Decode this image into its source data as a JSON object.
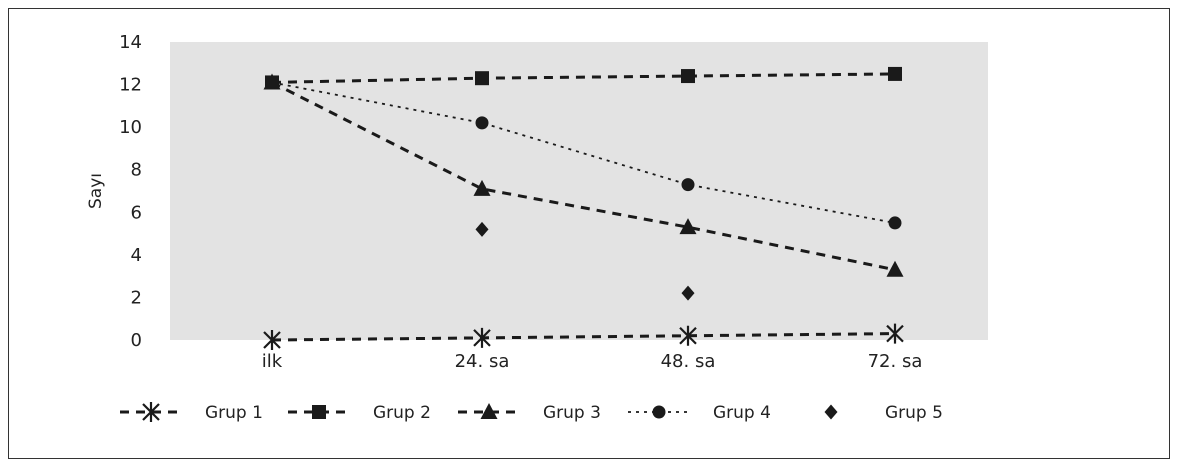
{
  "chart_data": {
    "type": "line",
    "ylabel": "Sayı",
    "xlabel": "",
    "ylim": [
      0,
      14
    ],
    "yticks": [
      0,
      2,
      4,
      6,
      8,
      10,
      12,
      14
    ],
    "categories": [
      "ilk",
      "24. sa",
      "48. sa",
      "72. sa"
    ],
    "grid": false,
    "legend_position": "bottom",
    "series": [
      {
        "name": "Grup 1",
        "values": [
          0,
          0.1,
          0.2,
          0.3
        ],
        "marker": "asterisk",
        "line": "dashed",
        "color": "#1a1a1a"
      },
      {
        "name": "Grup 2",
        "values": [
          12.1,
          12.3,
          12.4,
          12.5
        ],
        "marker": "square",
        "line": "dashed",
        "color": "#1a1a1a"
      },
      {
        "name": "Grup 3",
        "values": [
          12.1,
          7.1,
          5.3,
          3.3
        ],
        "marker": "triangle",
        "line": "dashed",
        "color": "#1a1a1a"
      },
      {
        "name": "Grup 4",
        "values": [
          12.1,
          10.2,
          7.3,
          5.5
        ],
        "marker": "circle",
        "line": "dotted",
        "color": "#1a1a1a"
      },
      {
        "name": "Grup 5",
        "values": [
          null,
          5.2,
          2.2,
          null
        ],
        "marker": "diamond",
        "line": "none",
        "color": "#1a1a1a"
      }
    ]
  }
}
